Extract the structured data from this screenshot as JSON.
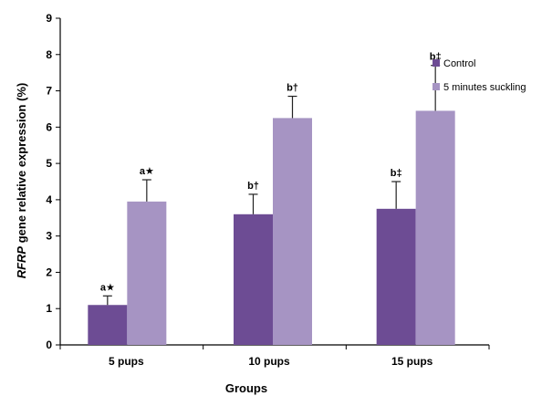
{
  "chart_data": {
    "type": "bar",
    "xlabel": "Groups",
    "ylabel": "RFRP gene relative expression (%)",
    "ylim": [
      0,
      9
    ],
    "yticks": [
      0,
      1,
      2,
      3,
      4,
      5,
      6,
      7,
      8,
      9
    ],
    "categories": [
      "5 pups",
      "10 pups",
      "15 pups"
    ],
    "series": [
      {
        "name": "Control",
        "color": "#6d4c94",
        "values": [
          1.1,
          3.6,
          3.75
        ],
        "errors": [
          0.25,
          0.55,
          0.75
        ],
        "labels": [
          "a★",
          "b†",
          "b‡"
        ]
      },
      {
        "name": "5 minutes suckling",
        "color": "#a694c3",
        "values": [
          3.95,
          6.25,
          6.45
        ],
        "errors": [
          0.6,
          0.6,
          1.25
        ],
        "labels": [
          "a★",
          "b†",
          "b‡"
        ]
      }
    ],
    "legend": "right",
    "grid": false
  }
}
